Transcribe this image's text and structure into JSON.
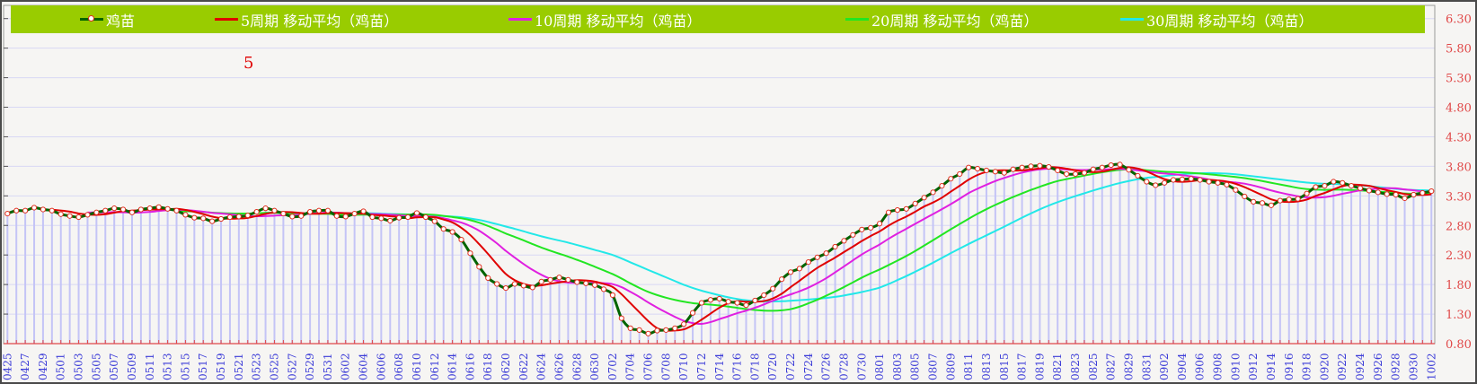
{
  "chart_data": {
    "type": "line",
    "title": "",
    "xlabel": "",
    "ylabel": "",
    "ylim": [
      0.8,
      6.3
    ],
    "y_ticks": [
      "0.80",
      "1.30",
      "1.80",
      "2.30",
      "2.80",
      "3.30",
      "3.80",
      "4.30",
      "4.80",
      "5.30",
      "5.80",
      "6.30"
    ],
    "y_axis_side": "right",
    "grid": true,
    "legend_placement": "top",
    "annotation": "5",
    "x_tick_labels": [
      "0425",
      "0427",
      "0429",
      "0501",
      "0503",
      "0505",
      "0507",
      "0509",
      "0511",
      "0513",
      "0515",
      "0517",
      "0519",
      "0521",
      "0523",
      "0525",
      "0527",
      "0529",
      "0531",
      "0602",
      "0604",
      "0606",
      "0608",
      "0610",
      "0612",
      "0614",
      "0616",
      "0618",
      "0620",
      "0622",
      "0624",
      "0626",
      "0628",
      "0630",
      "0702",
      "0704",
      "0706",
      "0708",
      "0710",
      "0712",
      "0714",
      "0716",
      "0718",
      "0720",
      "0722",
      "0724",
      "0726",
      "0728",
      "0730",
      "0801",
      "0803",
      "0805",
      "0807",
      "0809",
      "0811",
      "0813",
      "0815",
      "0817",
      "0819",
      "0821",
      "0823",
      "0825",
      "0827",
      "0829",
      "0831",
      "0902",
      "0904",
      "0906",
      "0908",
      "0910",
      "0912",
      "0914",
      "0916",
      "0918",
      "0920",
      "0922",
      "0924",
      "0926",
      "0928",
      "0930",
      "1002"
    ],
    "x_tick_every": 2,
    "series": [
      {
        "name": "鸡苗",
        "color": "#006400",
        "marker_color": "#e03020",
        "type": "main",
        "values": [
          3.0,
          3.05,
          3.05,
          3.1,
          3.07,
          3.05,
          2.99,
          2.96,
          2.94,
          2.98,
          3.02,
          3.05,
          3.09,
          3.07,
          3.02,
          3.07,
          3.09,
          3.11,
          3.08,
          3.05,
          2.98,
          2.93,
          2.92,
          2.87,
          2.91,
          2.94,
          2.95,
          2.97,
          3.03,
          3.09,
          3.05,
          3.0,
          2.95,
          2.96,
          3.03,
          3.05,
          3.05,
          2.96,
          2.95,
          3.0,
          3.04,
          2.94,
          2.92,
          2.88,
          2.93,
          2.94,
          3.01,
          2.94,
          2.87,
          2.74,
          2.69,
          2.56,
          2.33,
          2.1,
          1.91,
          1.81,
          1.74,
          1.81,
          1.78,
          1.75,
          1.85,
          1.88,
          1.92,
          1.88,
          1.84,
          1.82,
          1.79,
          1.72,
          1.62,
          1.23,
          1.06,
          1.03,
          0.97,
          1.02,
          1.03,
          1.06,
          1.13,
          1.32,
          1.49,
          1.54,
          1.56,
          1.51,
          1.49,
          1.45,
          1.53,
          1.62,
          1.73,
          1.89,
          2.01,
          2.07,
          2.18,
          2.26,
          2.33,
          2.44,
          2.54,
          2.64,
          2.73,
          2.76,
          2.83,
          3.02,
          3.06,
          3.08,
          3.17,
          3.27,
          3.36,
          3.47,
          3.59,
          3.67,
          3.78,
          3.76,
          3.73,
          3.71,
          3.69,
          3.75,
          3.78,
          3.8,
          3.81,
          3.79,
          3.73,
          3.67,
          3.67,
          3.69,
          3.75,
          3.78,
          3.82,
          3.83,
          3.74,
          3.64,
          3.54,
          3.48,
          3.52,
          3.57,
          3.58,
          3.59,
          3.57,
          3.54,
          3.52,
          3.49,
          3.4,
          3.29,
          3.2,
          3.18,
          3.14,
          3.22,
          3.24,
          3.25,
          3.34,
          3.45,
          3.47,
          3.54,
          3.52,
          3.47,
          3.43,
          3.39,
          3.36,
          3.33,
          3.32,
          3.26,
          3.32,
          3.35,
          3.38
        ]
      },
      {
        "name": "5周期 移动平均（鸡苗）",
        "color": "#e00000",
        "type": "moving_average",
        "period": 5
      },
      {
        "name": "10周期 移动平均（鸡苗）",
        "color": "#e020e0",
        "type": "moving_average",
        "period": 10
      },
      {
        "name": "20周期 移动平均（鸡苗）",
        "color": "#22e622",
        "type": "moving_average",
        "period": 20
      },
      {
        "name": "30周期 移动平均（鸡苗）",
        "color": "#22e8e8",
        "type": "moving_average",
        "period": 30
      }
    ],
    "colors": {
      "legend_bg": "#99cc00",
      "bar": "#c4c4f6",
      "grid": "#d8d8f4",
      "y_tick": "#e04848",
      "x_tick": "#3c3cd8"
    }
  }
}
